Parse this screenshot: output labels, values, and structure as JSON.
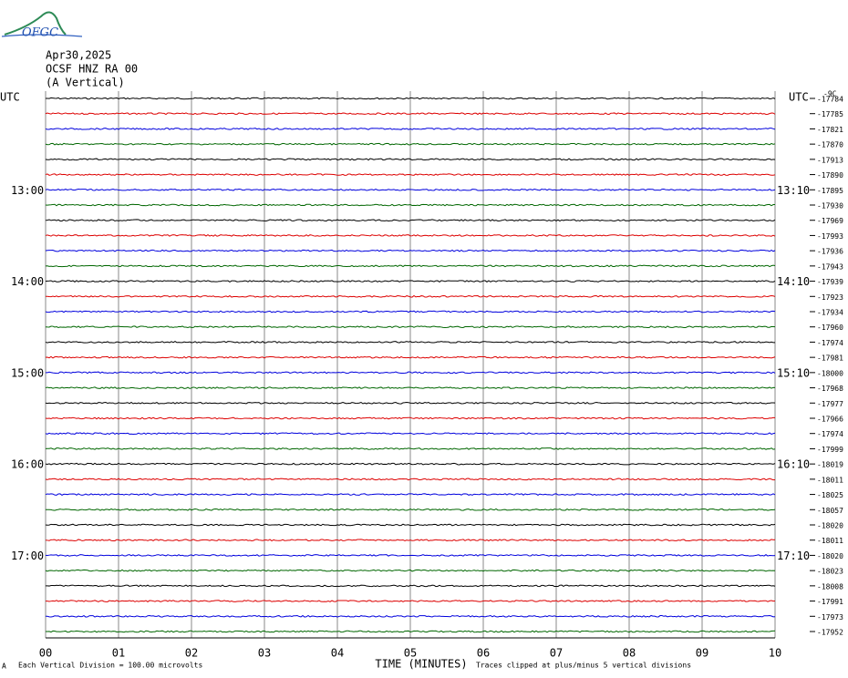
{
  "logo": "OFGC",
  "header": {
    "date": "Apr30,2025",
    "station": "OCSF HNZ RA 00",
    "component": "(A Vertical)",
    "corner_note": "-9C"
  },
  "left_axis": {
    "top": "UTC",
    "hours": [
      "13:00",
      "14:00",
      "15:00",
      "16:00",
      "17:00"
    ]
  },
  "right_axis": {
    "top": "UTC",
    "hours": [
      "13:10",
      "14:10",
      "15:10",
      "16:10",
      "17:10"
    ]
  },
  "offsets": [
    "-17784",
    "-17785",
    "-17821",
    "-17870",
    "-17913",
    "-17890",
    "-17895",
    "-17930",
    "-17969",
    "-17993",
    "-17936",
    "-17943",
    "-17939",
    "-17923",
    "-17934",
    "-17960",
    "-17974",
    "-17981",
    "-18000",
    "-17968",
    "-17977",
    "-17966",
    "-17974",
    "-17999",
    "-18019",
    "-18011",
    "-18025",
    "-18057",
    "-18020",
    "-18011",
    "-18020",
    "-18023",
    "-18008",
    "-17991",
    "-17973",
    "-17952"
  ],
  "trace_colors": [
    "#000000",
    "#dd0000",
    "#0000dd",
    "#006600"
  ],
  "x_axis": {
    "ticks": [
      "00",
      "01",
      "02",
      "03",
      "04",
      "05",
      "06",
      "07",
      "08",
      "09",
      "10"
    ],
    "label": "TIME (MINUTES)"
  },
  "footer": {
    "mark": "A",
    "scale": "Each Vertical Division =  100.00 microvolts",
    "clip": "Traces clipped at plus/minus 5 vertical divisions"
  }
}
